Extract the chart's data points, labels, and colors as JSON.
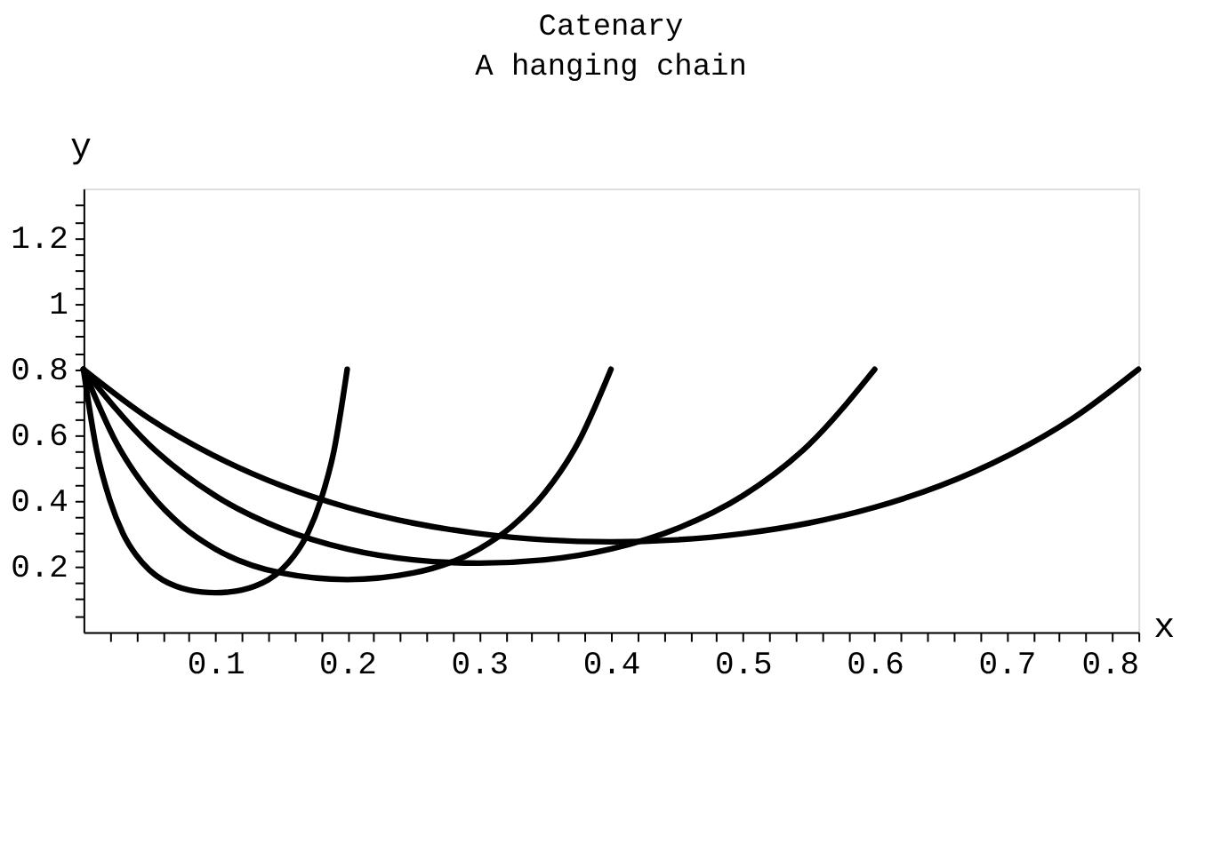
{
  "chart_data": {
    "type": "line",
    "title": "Catenary",
    "subtitle": "A hanging chain",
    "xlabel": "x",
    "ylabel": "y",
    "xlim": [
      0,
      0.8
    ],
    "ylim": [
      0,
      1.35
    ],
    "xticks": [
      {
        "value": 0.02,
        "label": null
      },
      {
        "value": 0.04,
        "label": null
      },
      {
        "value": 0.06,
        "label": null
      },
      {
        "value": 0.08,
        "label": null
      },
      0.1,
      {
        "value": 0.12,
        "label": null
      },
      {
        "value": 0.14,
        "label": null
      },
      {
        "value": 0.16,
        "label": null
      },
      {
        "value": 0.18,
        "label": null
      },
      0.2,
      {
        "value": 0.22,
        "label": null
      },
      {
        "value": 0.24,
        "label": null
      },
      {
        "value": 0.26,
        "label": null
      },
      {
        "value": 0.28,
        "label": null
      },
      0.3,
      {
        "value": 0.32,
        "label": null
      },
      {
        "value": 0.34,
        "label": null
      },
      {
        "value": 0.36,
        "label": null
      },
      {
        "value": 0.38,
        "label": null
      },
      0.4,
      {
        "value": 0.42,
        "label": null
      },
      {
        "value": 0.44,
        "label": null
      },
      {
        "value": 0.46,
        "label": null
      },
      {
        "value": 0.48,
        "label": null
      },
      0.5,
      {
        "value": 0.52,
        "label": null
      },
      {
        "value": 0.54,
        "label": null
      },
      {
        "value": 0.56,
        "label": null
      },
      {
        "value": 0.58,
        "label": null
      },
      0.6,
      {
        "value": 0.62,
        "label": null
      },
      {
        "value": 0.64,
        "label": null
      },
      {
        "value": 0.66,
        "label": null
      },
      {
        "value": 0.68,
        "label": null
      },
      0.7,
      {
        "value": 0.72,
        "label": null
      },
      {
        "value": 0.74,
        "label": null
      },
      {
        "value": 0.76,
        "label": null
      },
      {
        "value": 0.78,
        "label": null
      },
      0.8
    ],
    "yticks": [
      {
        "value": 0.05,
        "label": null
      },
      {
        "value": 0.1,
        "label": null
      },
      {
        "value": 0.15,
        "label": null
      },
      0.2,
      {
        "value": 0.25,
        "label": null
      },
      {
        "value": 0.3,
        "label": null
      },
      {
        "value": 0.35,
        "label": null
      },
      0.4,
      {
        "value": 0.45,
        "label": null
      },
      {
        "value": 0.5,
        "label": null
      },
      {
        "value": 0.55,
        "label": null
      },
      0.6,
      {
        "value": 0.65,
        "label": null
      },
      {
        "value": 0.7,
        "label": null
      },
      {
        "value": 0.75,
        "label": null
      },
      0.8,
      {
        "value": 0.85,
        "label": null
      },
      {
        "value": 0.9,
        "label": null
      },
      {
        "value": 0.95,
        "label": null
      },
      1,
      {
        "value": 1.05,
        "label": null
      },
      {
        "value": 1.1,
        "label": null
      },
      {
        "value": 1.15,
        "label": null
      },
      1.2,
      {
        "value": 1.25,
        "label": null
      },
      {
        "value": 1.3,
        "label": null
      }
    ],
    "grid": false,
    "legend": false,
    "marker": "none",
    "line_style": "solid",
    "series": [
      {
        "color": "#000000",
        "x": [
          0,
          0.01,
          0.02,
          0.03,
          0.04,
          0.05,
          0.06,
          0.07,
          0.08,
          0.09,
          0.1,
          0.11,
          0.12,
          0.13,
          0.14,
          0.15,
          0.16,
          0.17,
          0.18,
          0.19,
          0.2
        ],
        "values": [
          0.8,
          0.553,
          0.402,
          0.3,
          0.234,
          0.189,
          0.159,
          0.14,
          0.128,
          0.122,
          0.12,
          0.122,
          0.128,
          0.14,
          0.159,
          0.189,
          0.234,
          0.3,
          0.402,
          0.553,
          0.8
        ]
      },
      {
        "color": "#000000",
        "x": [
          0,
          0.025,
          0.05,
          0.075,
          0.1,
          0.15,
          0.2,
          0.25,
          0.3,
          0.325,
          0.35,
          0.375,
          0.4
        ],
        "values": [
          0.8,
          0.576,
          0.425,
          0.322,
          0.253,
          0.18,
          0.16,
          0.18,
          0.253,
          0.322,
          0.425,
          0.576,
          0.8
        ]
      },
      {
        "color": "#000000",
        "x": [
          0,
          0.05,
          0.1,
          0.15,
          0.2,
          0.25,
          0.3,
          0.35,
          0.4,
          0.45,
          0.5,
          0.55,
          0.6
        ],
        "values": [
          0.8,
          0.57,
          0.415,
          0.315,
          0.253,
          0.22,
          0.21,
          0.22,
          0.253,
          0.315,
          0.415,
          0.57,
          0.8
        ]
      },
      {
        "color": "#000000",
        "x": [
          0,
          0.05,
          0.1,
          0.15,
          0.2,
          0.25,
          0.3,
          0.35,
          0.4,
          0.45,
          0.5,
          0.55,
          0.6,
          0.65,
          0.7,
          0.75,
          0.8
        ],
        "values": [
          0.8,
          0.65,
          0.535,
          0.446,
          0.38,
          0.332,
          0.3,
          0.281,
          0.275,
          0.281,
          0.3,
          0.332,
          0.38,
          0.446,
          0.535,
          0.65,
          0.8
        ]
      }
    ]
  }
}
